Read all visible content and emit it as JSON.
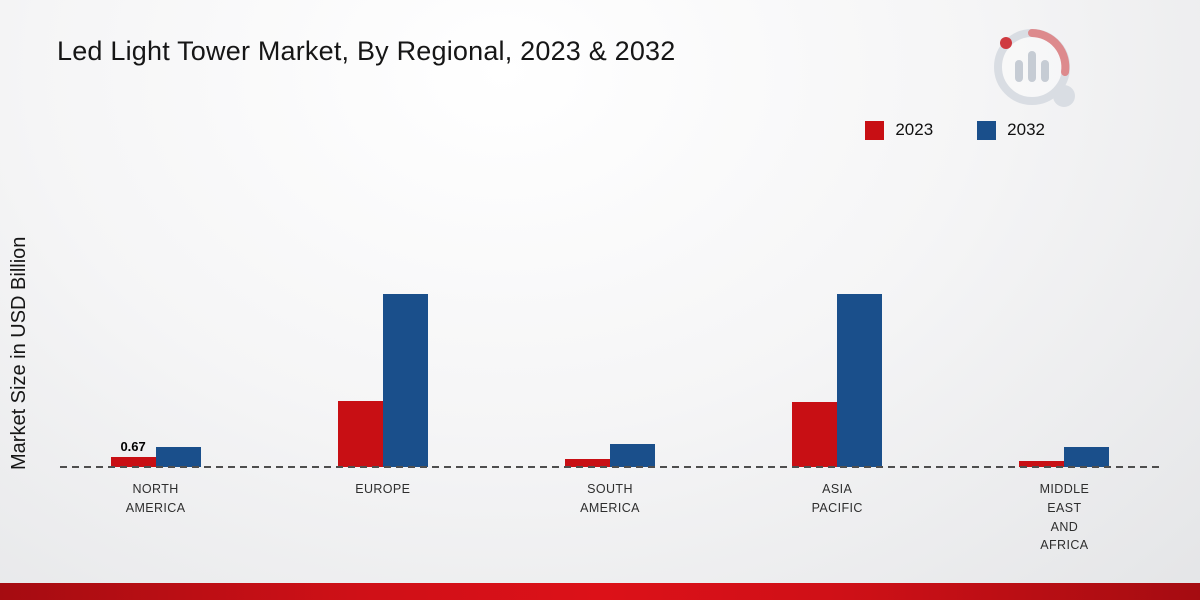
{
  "chart_data": {
    "type": "bar",
    "title": "Led Light Tower Market, By Regional, 2023 & 2032",
    "xlabel": "",
    "ylabel": "Market Size in USD Billion",
    "unit": "USD Billion",
    "categories": [
      "NORTH AMERICA",
      "EUROPE",
      "SOUTH AMERICA",
      "ASIA PACIFIC",
      "MIDDLE EAST AND AFRICA"
    ],
    "category_label_lines": [
      [
        "NORTH",
        "AMERICA"
      ],
      [
        "EUROPE"
      ],
      [
        "SOUTH",
        "AMERICA"
      ],
      [
        "ASIA",
        "PACIFIC"
      ],
      [
        "MIDDLE",
        "EAST",
        "AND",
        "AFRICA"
      ]
    ],
    "series": [
      {
        "name": "2023",
        "color": "#c80f14",
        "values": [
          0.67,
          4.4,
          0.5,
          4.3,
          0.4
        ]
      },
      {
        "name": "2032",
        "color": "#1a4f8b",
        "values": [
          1.3,
          11.5,
          1.5,
          11.5,
          1.3
        ]
      }
    ],
    "data_labels": [
      {
        "category": "NORTH AMERICA",
        "series": "2023",
        "text": "0.67"
      }
    ],
    "ylim": [
      0,
      12
    ],
    "grid": false,
    "legend_position": "top-right",
    "baseline_style": "dashed"
  },
  "branding": {
    "logo": "market-research-bar-chart-logo",
    "footer_bar_color": "#c8151b"
  }
}
